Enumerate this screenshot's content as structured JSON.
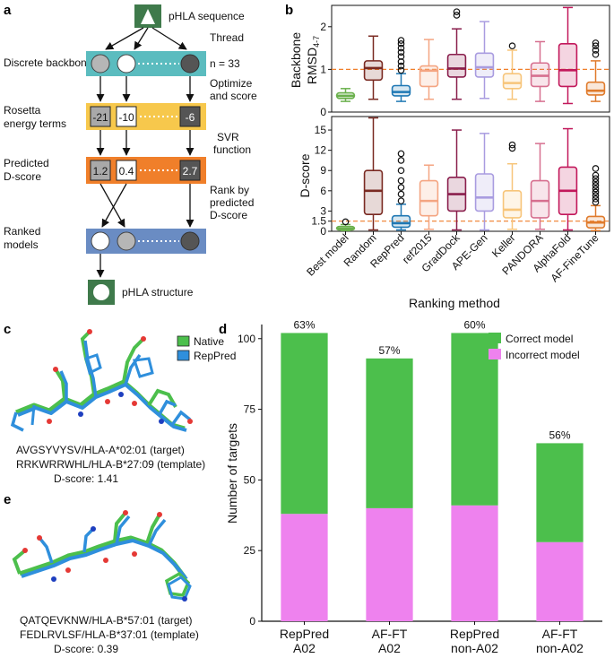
{
  "panels": {
    "a": "a",
    "b": "b",
    "c": "c",
    "d": "d",
    "e": "e"
  },
  "workflow": {
    "top_node": "pHLA sequence",
    "bottom_node": "pHLA structure",
    "stages": [
      {
        "label": "Discrete backbones"
      },
      {
        "label": "Rosetta energy terms",
        "values": [
          "-21",
          "-10",
          "-6"
        ]
      },
      {
        "label": "Predicted D-score",
        "values": [
          "1.2",
          "0.4",
          "2.7"
        ]
      },
      {
        "label": "Ranked models"
      }
    ],
    "steps": [
      "Thread",
      "Optimize",
      "and score",
      "SVR",
      "function",
      "Rank by",
      "predicted",
      "D-score"
    ],
    "n_label": "n = 33",
    "colors": {
      "teal": "#5bbcbf",
      "yellow": "#f7c84c",
      "orange": "#f07f2a",
      "blue": "#6a8cc3",
      "node": "#3f7a4b"
    }
  },
  "chart_data": [
    {
      "type": "box",
      "title": "",
      "xlabel": "Ranking method",
      "categories": [
        "Best model",
        "Random",
        "RepPred",
        "ref2015",
        "GradDock",
        "APE-Gen",
        "Keller",
        "PANDORA",
        "AlphaFold",
        "AF-FineTune"
      ],
      "colors": [
        "#6ab04c",
        "#7a2a22",
        "#1f78b4",
        "#f4a582",
        "#8a1f4d",
        "#a99ce0",
        "#f7c57a",
        "#d66f8f",
        "#c2185b",
        "#e07b2c"
      ],
      "panels": [
        {
          "ylabel": "Backbone RMSD4-7",
          "ylim": [
            0,
            2.5
          ],
          "yticks": [
            0,
            1,
            2
          ],
          "reference_line": 1.0,
          "series": [
            {
              "whisker_low": 0.25,
              "q1": 0.32,
              "median": 0.38,
              "q3": 0.45,
              "whisker_high": 0.55,
              "outliers": []
            },
            {
              "whisker_low": 0.3,
              "q1": 0.75,
              "median": 1.03,
              "q3": 1.2,
              "whisker_high": 1.78,
              "outliers": []
            },
            {
              "whisker_low": 0.25,
              "q1": 0.38,
              "median": 0.47,
              "q3": 0.62,
              "whisker_high": 0.9,
              "outliers": [
                0.98,
                1.08,
                1.18,
                1.3,
                1.4,
                1.5,
                1.6,
                1.68
              ]
            },
            {
              "whisker_low": 0.3,
              "q1": 0.6,
              "median": 0.97,
              "q3": 1.08,
              "whisker_high": 1.7,
              "outliers": []
            },
            {
              "whisker_low": 0.3,
              "q1": 0.82,
              "median": 1.02,
              "q3": 1.35,
              "whisker_high": 1.95,
              "outliers": [
                2.27,
                2.35
              ]
            },
            {
              "whisker_low": 0.32,
              "q1": 0.82,
              "median": 1.05,
              "q3": 1.38,
              "whisker_high": 2.12,
              "outliers": []
            },
            {
              "whisker_low": 0.3,
              "q1": 0.55,
              "median": 0.68,
              "q3": 0.9,
              "whisker_high": 1.45,
              "outliers": [
                1.55
              ]
            },
            {
              "whisker_low": 0.25,
              "q1": 0.6,
              "median": 0.85,
              "q3": 1.15,
              "whisker_high": 1.65,
              "outliers": []
            },
            {
              "whisker_low": 0.2,
              "q1": 0.6,
              "median": 0.98,
              "q3": 1.6,
              "whisker_high": 2.45,
              "outliers": []
            },
            {
              "whisker_low": 0.25,
              "q1": 0.4,
              "median": 0.5,
              "q3": 0.7,
              "whisker_high": 1.2,
              "outliers": [
                1.35,
                1.45,
                1.55,
                1.62
              ]
            }
          ]
        },
        {
          "ylabel": "D-score",
          "ylim": [
            0,
            17
          ],
          "yticks": [
            0,
            1.5,
            3,
            6,
            9,
            12,
            15
          ],
          "reference_line": 1.5,
          "series": [
            {
              "whisker_low": 0.1,
              "q1": 0.2,
              "median": 0.4,
              "q3": 0.7,
              "whisker_high": 1.0,
              "outliers": [
                1.4
              ]
            },
            {
              "whisker_low": 0.2,
              "q1": 2.5,
              "median": 6.0,
              "q3": 9.0,
              "whisker_high": 16.8,
              "outliers": []
            },
            {
              "whisker_low": 0.2,
              "q1": 0.6,
              "median": 1.2,
              "q3": 2.3,
              "whisker_high": 4.0,
              "outliers": [
                4.5,
                5.5,
                6.5,
                7.5,
                9.0,
                10.5,
                11.5
              ]
            },
            {
              "whisker_low": 0.3,
              "q1": 2.3,
              "median": 4.5,
              "q3": 7.5,
              "whisker_high": 9.8,
              "outliers": []
            },
            {
              "whisker_low": 0.2,
              "q1": 3.0,
              "median": 5.5,
              "q3": 8.0,
              "whisker_high": 15.0,
              "outliers": []
            },
            {
              "whisker_low": 0.2,
              "q1": 3.0,
              "median": 5.0,
              "q3": 8.5,
              "whisker_high": 14.5,
              "outliers": []
            },
            {
              "whisker_low": 0.3,
              "q1": 2.0,
              "median": 3.2,
              "q3": 6.0,
              "whisker_high": 10.0,
              "outliers": [
                12.3,
                12.8
              ]
            },
            {
              "whisker_low": 0.3,
              "q1": 2.0,
              "median": 4.5,
              "q3": 7.5,
              "whisker_high": 13.0,
              "outliers": []
            },
            {
              "whisker_low": 0.2,
              "q1": 2.5,
              "median": 6.0,
              "q3": 9.5,
              "whisker_high": 15.2,
              "outliers": []
            },
            {
              "whisker_low": 0.1,
              "q1": 0.5,
              "median": 1.3,
              "q3": 2.2,
              "whisker_high": 3.8,
              "outliers": [
                4.3,
                4.8,
                5.3,
                5.8,
                6.3,
                6.8,
                7.3,
                7.8,
                8.3,
                9.3
              ]
            }
          ]
        }
      ]
    },
    {
      "type": "stacked_bar",
      "title": "",
      "xlabel": "",
      "ylabel": "Number of targets",
      "ylim": [
        0,
        105
      ],
      "yticks": [
        0,
        25,
        50,
        75,
        100
      ],
      "categories": [
        "RepPred A02",
        "AF-FT A02",
        "RepPred non-A02",
        "AF-FT non-A02"
      ],
      "category_lines": [
        [
          "RepPred",
          "A02"
        ],
        [
          "AF-FT",
          "A02"
        ],
        [
          "RepPred",
          "non-A02"
        ],
        [
          "AF-FT",
          "non-A02"
        ]
      ],
      "series": [
        {
          "name": "Incorrect model",
          "color": "#ee82ee",
          "values": [
            38,
            40,
            41,
            28
          ]
        },
        {
          "name": "Correct model",
          "color": "#4cbf4c",
          "values": [
            64,
            53,
            61,
            35
          ]
        }
      ],
      "bar_labels": [
        "63%",
        "57%",
        "60%",
        "56%"
      ],
      "legend_position": "top-right"
    }
  ],
  "structures": {
    "legend": [
      {
        "name": "Native",
        "color": "#4cbf4c"
      },
      {
        "name": "RepPred",
        "color": "#2f8fdc"
      }
    ],
    "c": {
      "line1": "AVGSYVYSV/HLA-A*02:01 (target)",
      "line2": "RRKWRRWHL/HLA-B*27:09 (template)",
      "line3": "D-score: 1.41"
    },
    "e": {
      "line1": "QATQEVKNW/HLA-B*57:01 (target)",
      "line2": "FEDLRVLSF/HLA-B*37:01 (template)",
      "line3": "D-score: 0.39"
    }
  }
}
